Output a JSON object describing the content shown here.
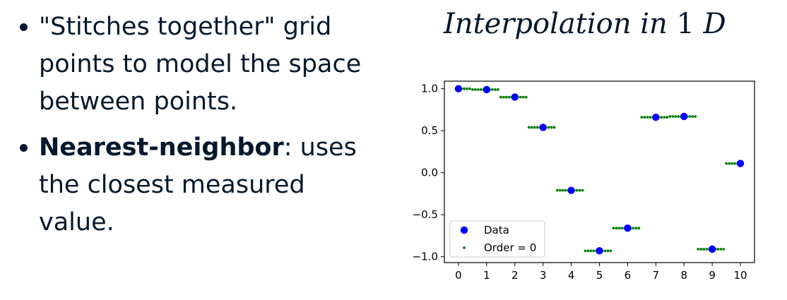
{
  "slide": {
    "bullets": [
      {
        "text": "\"Stitches together\" grid points to model the space between points."
      },
      {
        "bold": "Nearest-neighbor",
        "text": ": uses the closest measured value."
      }
    ],
    "title_words": [
      "Interpolation",
      "in",
      "1",
      "D"
    ]
  },
  "chart_data": {
    "type": "scatter",
    "title": "",
    "xlabel": "",
    "ylabel": "",
    "xlim": [
      -0.5,
      10.5
    ],
    "ylim": [
      -1.07,
      1.09
    ],
    "xticks": [
      0,
      1,
      2,
      3,
      4,
      5,
      6,
      7,
      8,
      9,
      10
    ],
    "yticks": [
      1.0,
      0.5,
      0.0,
      -0.5,
      -1.0
    ],
    "ytick_labels": [
      "1.0",
      "0.5",
      "0.0",
      "−0.5",
      "−1.0"
    ],
    "legend_position": "lower-left",
    "grid": false,
    "series": [
      {
        "name": "Data",
        "marker": "large-dot",
        "color": "#0000ff",
        "x": [
          0,
          1,
          2,
          3,
          4,
          5,
          6,
          7,
          8,
          9,
          10
        ],
        "y": [
          1.0,
          0.99,
          0.9,
          0.54,
          -0.21,
          -0.93,
          -0.66,
          0.66,
          0.67,
          -0.91,
          0.11
        ]
      },
      {
        "name": "Order = 0",
        "marker": "small-dot",
        "color": "#008000",
        "step": 0.1,
        "x_range": [
          0,
          10
        ]
      }
    ]
  }
}
